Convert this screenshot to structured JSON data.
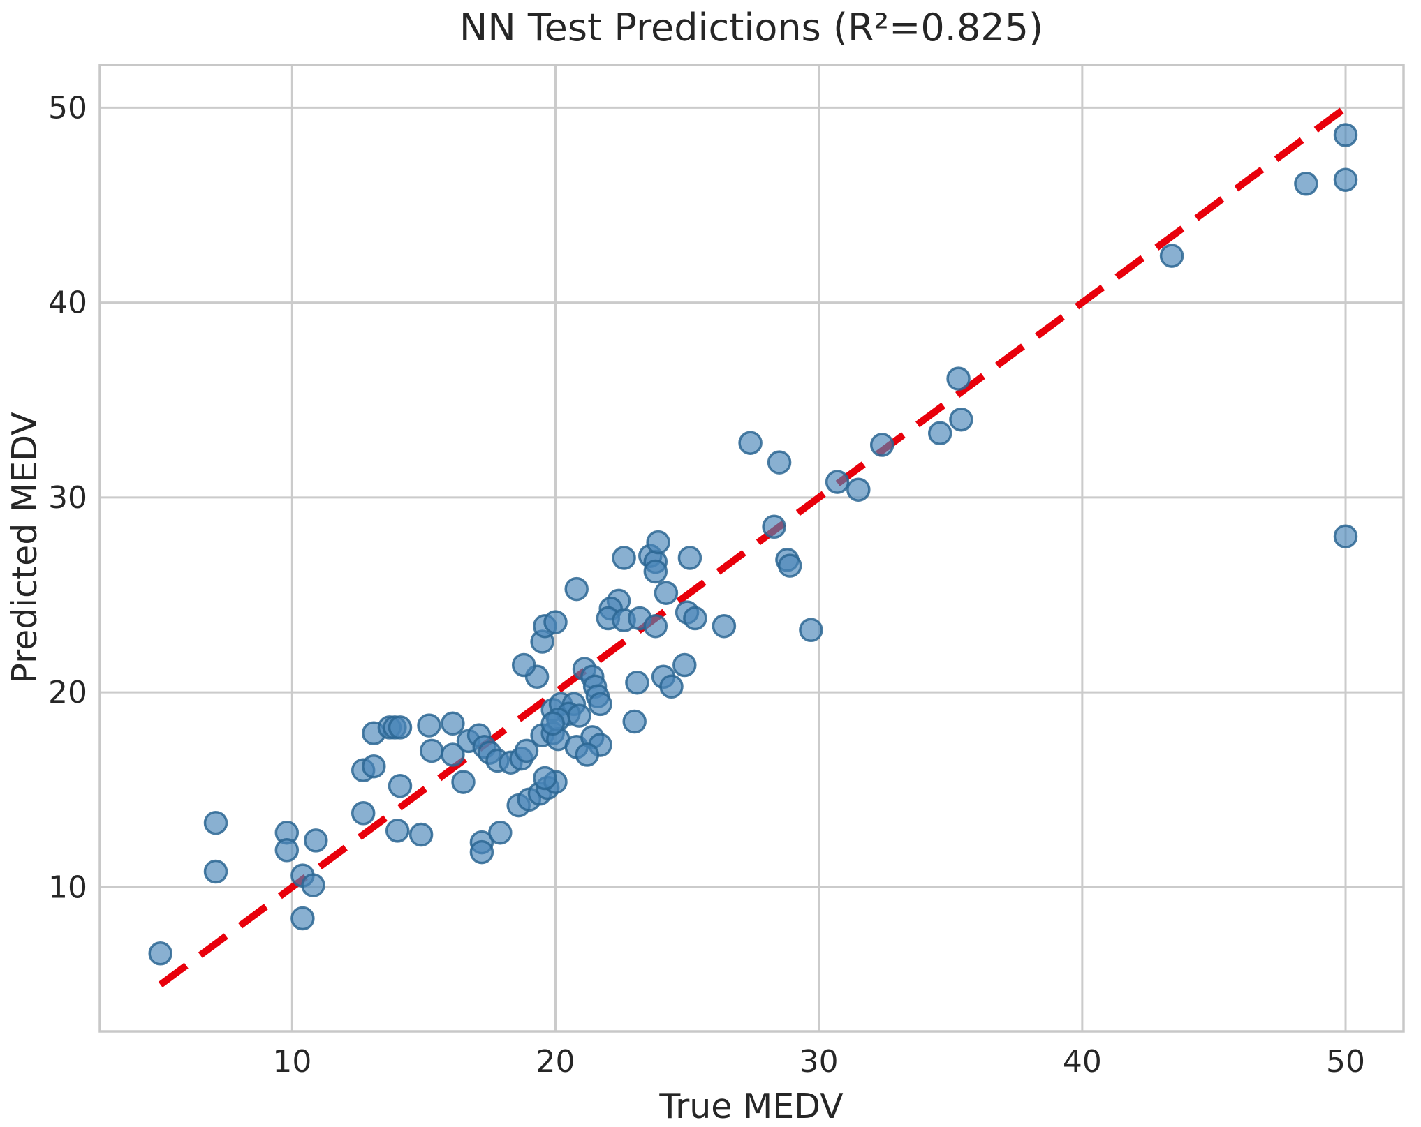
{
  "figure": {
    "background": "#ffffff",
    "text_color": "#262626",
    "grid_color": "#cbcbcb",
    "frame_color": "#c8c8c8"
  },
  "chart_data": {
    "type": "scatter",
    "title": "NN Test Predictions (R²=0.825)",
    "xlabel": "True MEDV",
    "ylabel": "Predicted MEDV",
    "r_squared": 0.825,
    "xlim": [
      2.7,
      52.2
    ],
    "ylim": [
      2.6,
      52.2
    ],
    "xticks": [
      10,
      20,
      30,
      40,
      50
    ],
    "yticks": [
      10,
      20,
      30,
      40,
      50
    ],
    "grid": true,
    "legend": "none",
    "series": [
      {
        "name": "test-predictions",
        "marker": "circle",
        "fill_color": "#4a86b8",
        "edge_color": "#2c6693",
        "points": [
          [
            5.0,
            6.6
          ],
          [
            7.1,
            13.3
          ],
          [
            7.1,
            10.8
          ],
          [
            9.8,
            12.8
          ],
          [
            9.8,
            11.9
          ],
          [
            10.9,
            12.4
          ],
          [
            10.4,
            10.6
          ],
          [
            10.8,
            10.1
          ],
          [
            10.4,
            8.4
          ],
          [
            12.7,
            13.8
          ],
          [
            12.7,
            16.0
          ],
          [
            13.1,
            16.2
          ],
          [
            14.1,
            15.2
          ],
          [
            14.0,
            12.9
          ],
          [
            14.9,
            12.7
          ],
          [
            17.2,
            12.3
          ],
          [
            17.2,
            11.8
          ],
          [
            17.9,
            12.8
          ],
          [
            13.1,
            17.9
          ],
          [
            13.7,
            18.2
          ],
          [
            13.9,
            18.2
          ],
          [
            14.1,
            18.2
          ],
          [
            15.2,
            18.3
          ],
          [
            16.1,
            18.4
          ],
          [
            15.3,
            17.0
          ],
          [
            16.1,
            16.8
          ],
          [
            16.5,
            15.4
          ],
          [
            18.6,
            14.2
          ],
          [
            19.0,
            14.5
          ],
          [
            19.4,
            14.8
          ],
          [
            19.7,
            15.1
          ],
          [
            20.0,
            15.4
          ],
          [
            19.6,
            15.6
          ],
          [
            16.7,
            17.5
          ],
          [
            17.1,
            17.8
          ],
          [
            17.3,
            17.2
          ],
          [
            17.5,
            16.9
          ],
          [
            17.8,
            16.5
          ],
          [
            18.3,
            16.4
          ],
          [
            18.7,
            16.6
          ],
          [
            18.9,
            17.0
          ],
          [
            19.5,
            17.8
          ],
          [
            19.9,
            17.9
          ],
          [
            20.1,
            17.6
          ],
          [
            20.8,
            17.2
          ],
          [
            21.4,
            17.7
          ],
          [
            21.7,
            17.3
          ],
          [
            21.2,
            16.8
          ],
          [
            19.9,
            19.1
          ],
          [
            20.2,
            19.4
          ],
          [
            20.7,
            19.4
          ],
          [
            20.5,
            18.9
          ],
          [
            20.9,
            18.8
          ],
          [
            20.1,
            18.6
          ],
          [
            19.9,
            18.4
          ],
          [
            21.1,
            21.2
          ],
          [
            21.4,
            20.8
          ],
          [
            21.5,
            20.3
          ],
          [
            21.6,
            19.8
          ],
          [
            21.7,
            19.4
          ],
          [
            19.3,
            20.8
          ],
          [
            19.5,
            22.6
          ],
          [
            18.8,
            21.4
          ],
          [
            19.6,
            23.4
          ],
          [
            20.0,
            23.6
          ],
          [
            20.8,
            25.3
          ],
          [
            22.4,
            24.7
          ],
          [
            22.1,
            24.3
          ],
          [
            22.0,
            23.8
          ],
          [
            22.6,
            23.7
          ],
          [
            23.2,
            23.8
          ],
          [
            23.8,
            23.4
          ],
          [
            25.0,
            24.1
          ],
          [
            25.3,
            23.8
          ],
          [
            26.4,
            23.4
          ],
          [
            24.2,
            25.1
          ],
          [
            22.6,
            26.9
          ],
          [
            23.6,
            27.0
          ],
          [
            23.8,
            26.7
          ],
          [
            23.8,
            26.2
          ],
          [
            23.9,
            27.7
          ],
          [
            25.1,
            26.9
          ],
          [
            23.0,
            18.5
          ],
          [
            23.1,
            20.5
          ],
          [
            24.1,
            20.8
          ],
          [
            24.4,
            20.3
          ],
          [
            24.9,
            21.4
          ],
          [
            29.7,
            23.2
          ],
          [
            27.4,
            32.8
          ],
          [
            28.5,
            31.8
          ],
          [
            32.4,
            32.7
          ],
          [
            34.6,
            33.3
          ],
          [
            35.3,
            36.1
          ],
          [
            35.4,
            34.0
          ],
          [
            30.7,
            30.8
          ],
          [
            31.5,
            30.4
          ],
          [
            28.3,
            28.5
          ],
          [
            28.8,
            26.8
          ],
          [
            28.9,
            26.5
          ],
          [
            43.4,
            42.4
          ],
          [
            48.5,
            46.1
          ],
          [
            50.0,
            48.6
          ],
          [
            50.0,
            46.3
          ],
          [
            50.0,
            28.0
          ]
        ]
      }
    ],
    "reference_line": {
      "type": "identity",
      "from": [
        5,
        5
      ],
      "to": [
        50,
        50
      ],
      "style": "dashed",
      "color": "#e8000b"
    }
  }
}
